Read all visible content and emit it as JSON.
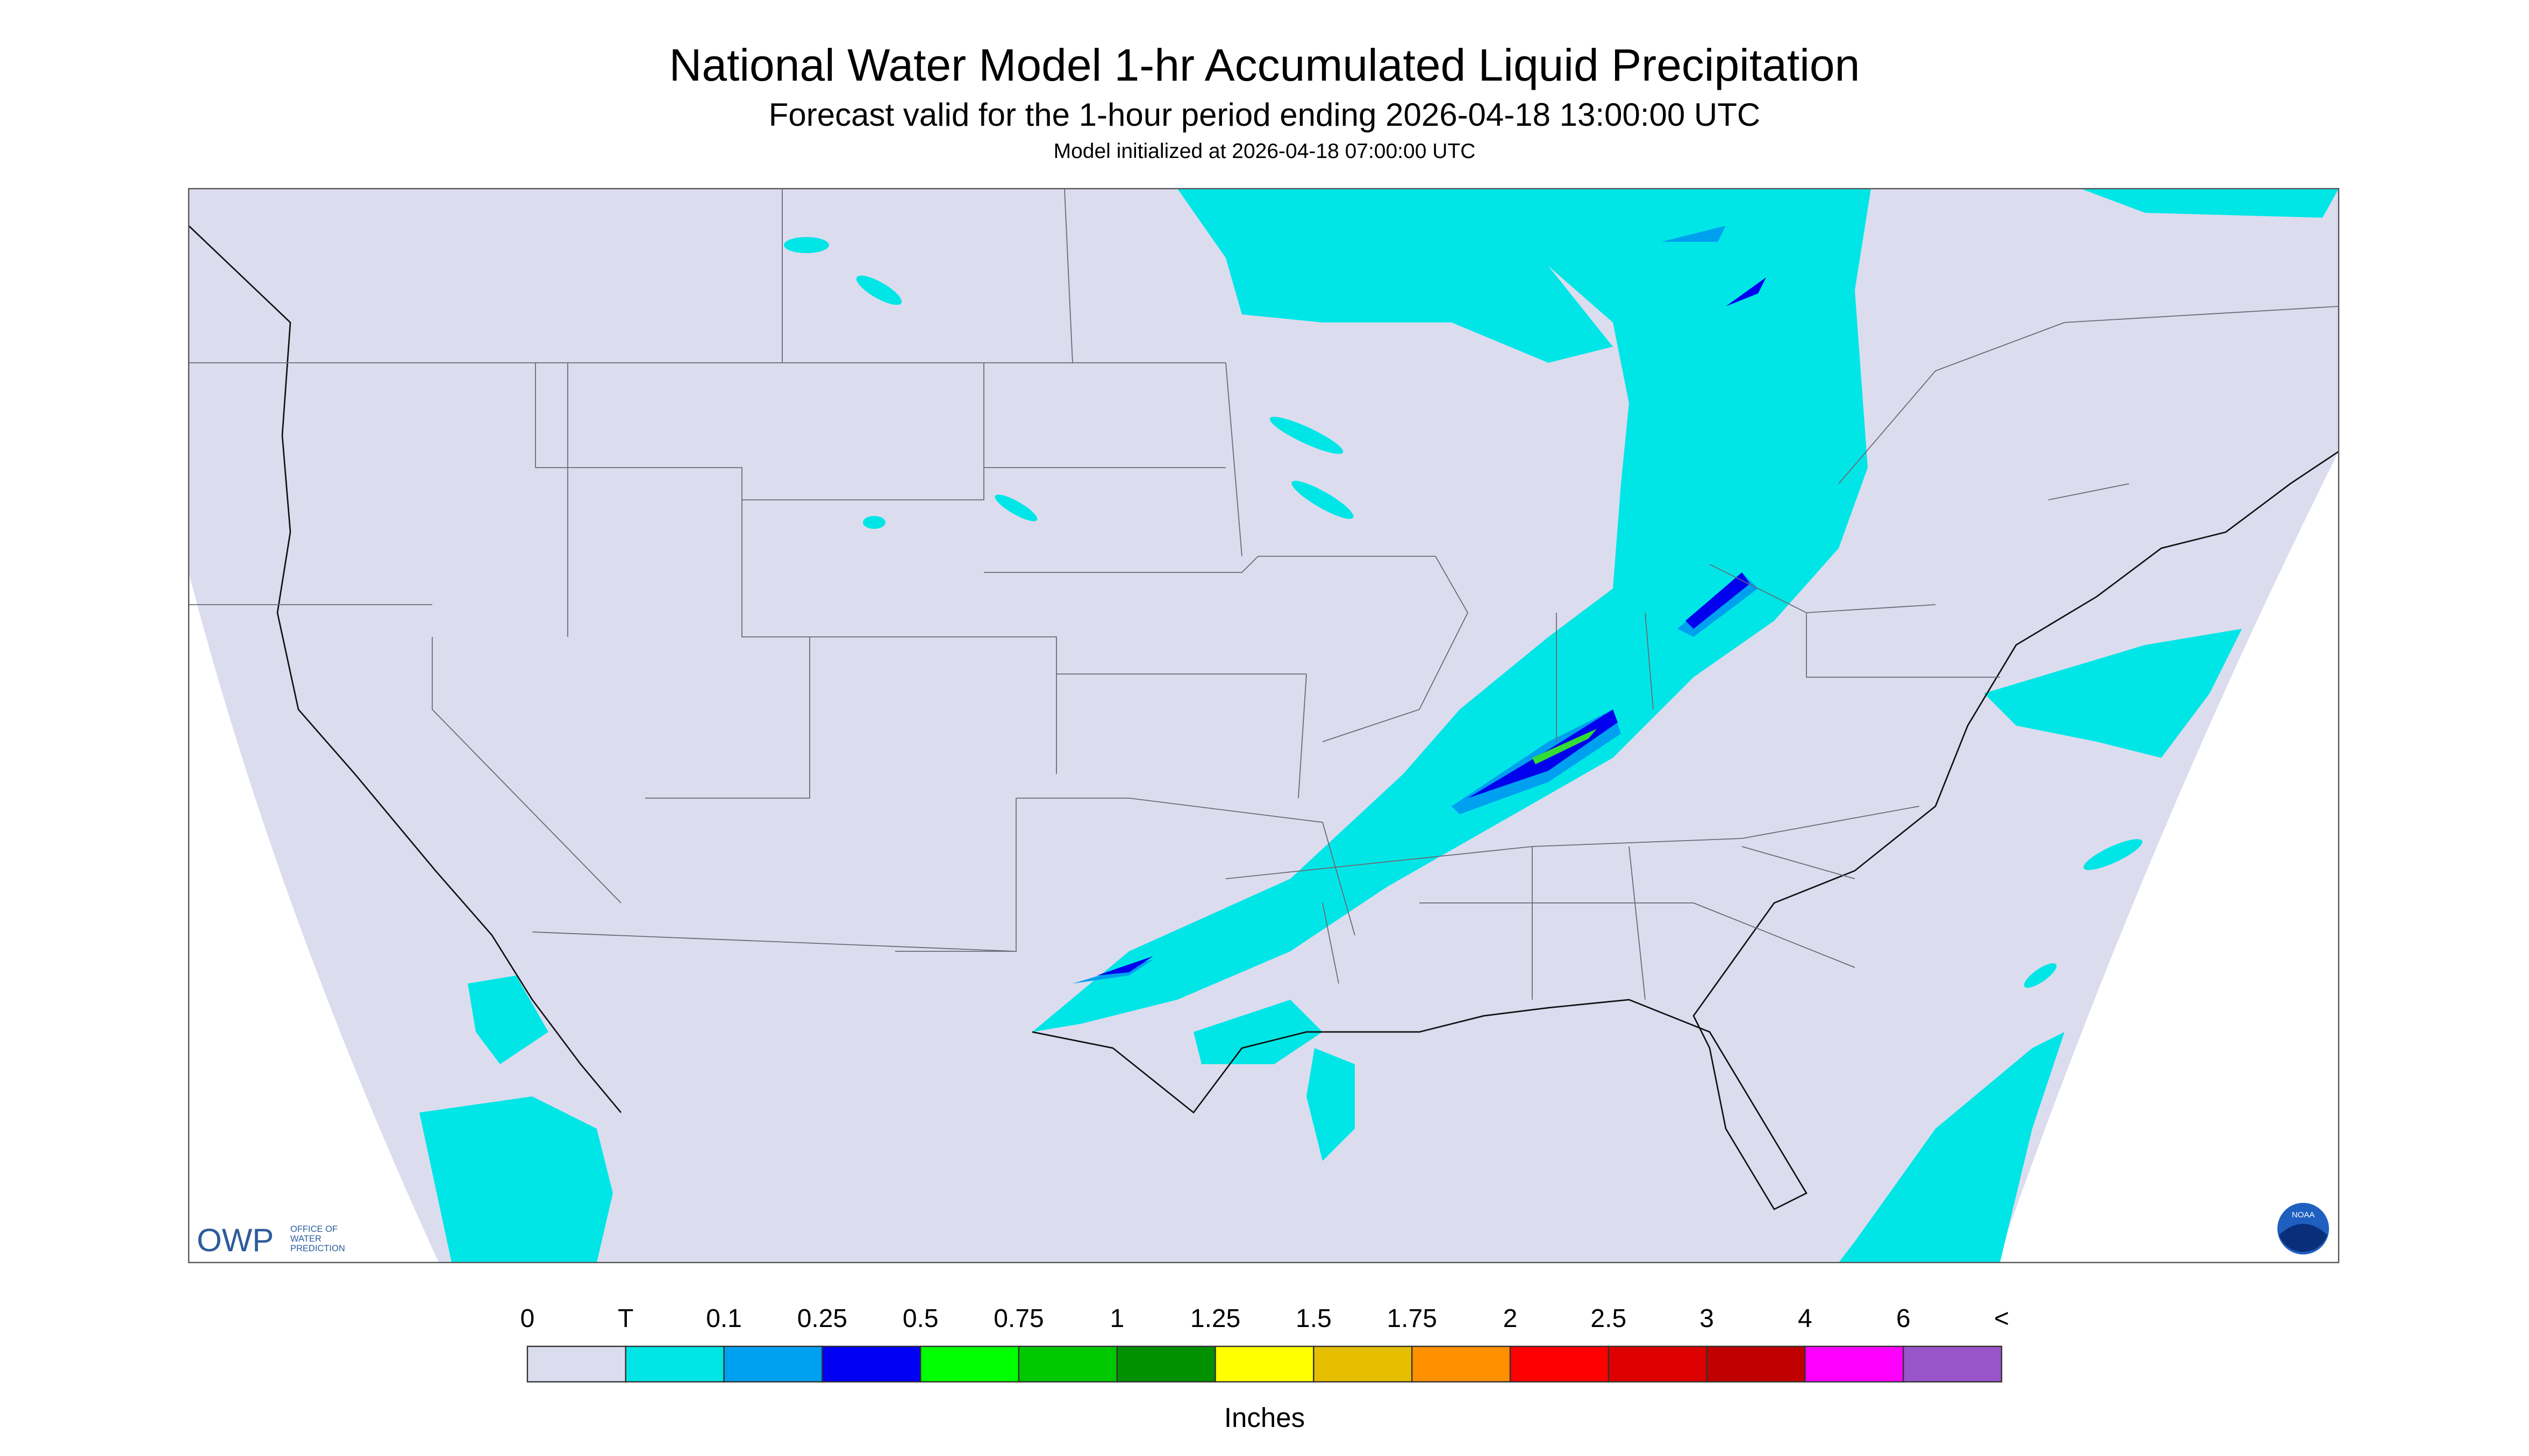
{
  "header": {
    "title": "National Water Model 1-hr Accumulated Liquid Precipitation",
    "subtitle": "Forecast valid for the 1-hour period ending 2026-04-18 13:00:00 UTC",
    "initialized": "Model initialized at 2026-04-18 07:00:00 UTC"
  },
  "logos": {
    "owp": "OWP",
    "owp_text": [
      "OFFICE OF",
      "WATER",
      "PREDICTION"
    ],
    "noaa": "NOAA"
  },
  "colorbar": {
    "labels": [
      "0",
      "T",
      "0.1",
      "0.25",
      "0.5",
      "0.75",
      "1",
      "1.25",
      "1.5",
      "1.75",
      "2",
      "2.5",
      "3",
      "4",
      "6",
      "<"
    ],
    "colors": [
      "#dcdcef",
      "#00e6e6",
      "#00a0f0",
      "#0000f5",
      "#00ff00",
      "#00c800",
      "#009000",
      "#ffff00",
      "#e6be00",
      "#ff9000",
      "#ff0000",
      "#dc0000",
      "#c00000",
      "#ff00ff",
      "#9955c9"
    ],
    "units": "Inches"
  }
}
